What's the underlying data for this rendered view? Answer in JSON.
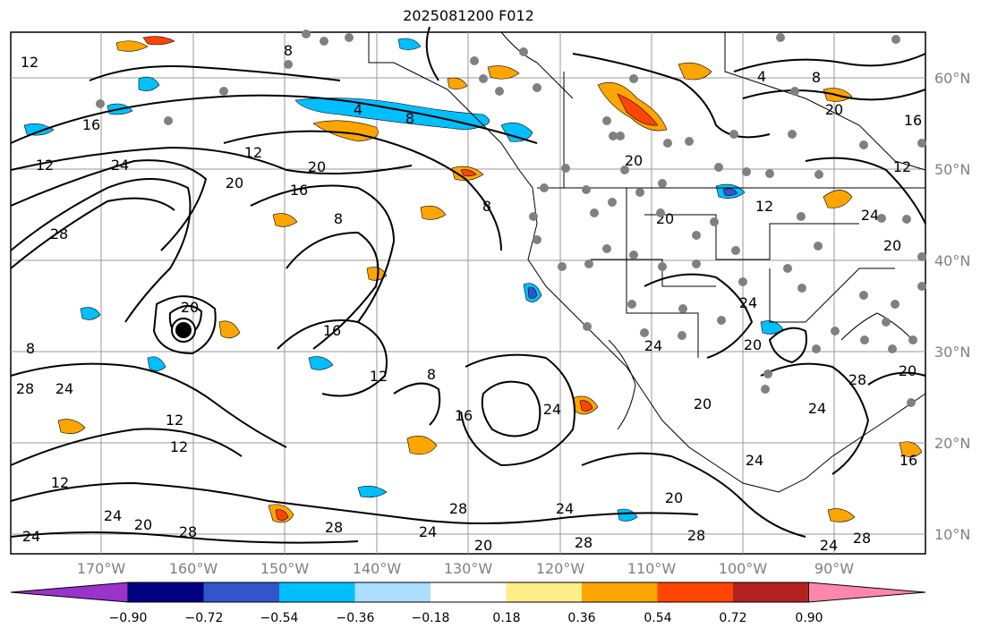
{
  "title": "2025081200 F012",
  "latitude_labels": [
    "60°N",
    "50°N",
    "40°N",
    "30°N",
    "20°N",
    "10°N"
  ],
  "longitude_labels": [
    "170°W",
    "160°W",
    "150°W",
    "140°W",
    "130°W",
    "120°W",
    "110°W",
    "100°W",
    "90°W"
  ],
  "colorbar": {
    "ticks": [
      "−0.90",
      "−0.72",
      "−0.54",
      "−0.36",
      "−0.18",
      "0.18",
      "0.36",
      "0.54",
      "0.72",
      "0.90"
    ],
    "colors": [
      "#9933cc",
      "#000080",
      "#3355cc",
      "#00bfff",
      "#aaddff",
      "#ffffff",
      "#ffee88",
      "#ffa500",
      "#ff4500",
      "#b22222",
      "#ff88aa"
    ]
  },
  "contour_labels": [
    "4",
    "8",
    "12",
    "16",
    "20",
    "24",
    "28"
  ],
  "colors": {
    "contour": "#000000",
    "grid": "#999999",
    "station_marker": "#808080",
    "frame": "#000000"
  }
}
